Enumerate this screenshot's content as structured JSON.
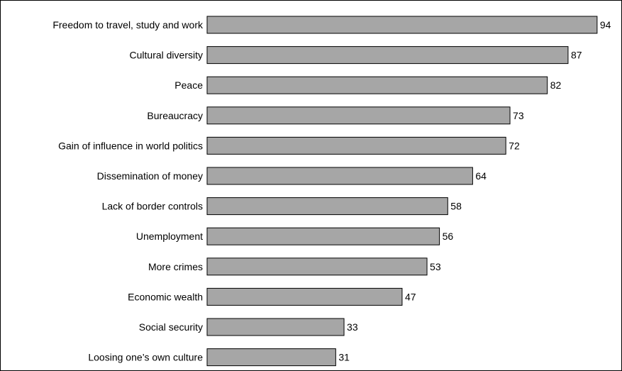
{
  "chart_data": {
    "type": "bar",
    "orientation": "horizontal",
    "title": "",
    "xlabel": "",
    "ylabel": "",
    "xlim": [
      0,
      100
    ],
    "grid": false,
    "legend": "none",
    "bar_color": "#a6a6a6",
    "bar_edge_color": "#000000",
    "categories": [
      "Freedom to travel, study and work",
      "Cultural diversity",
      "Peace",
      "Bureaucracy",
      "Gain of influence in world politics",
      "Dissemination of money",
      "Lack of border controls",
      "Unemployment",
      "More crimes",
      "Economic wealth",
      "Social security",
      "Loosing one’s own culture"
    ],
    "values": [
      94,
      87,
      82,
      73,
      72,
      64,
      58,
      56,
      53,
      47,
      33,
      31
    ]
  }
}
